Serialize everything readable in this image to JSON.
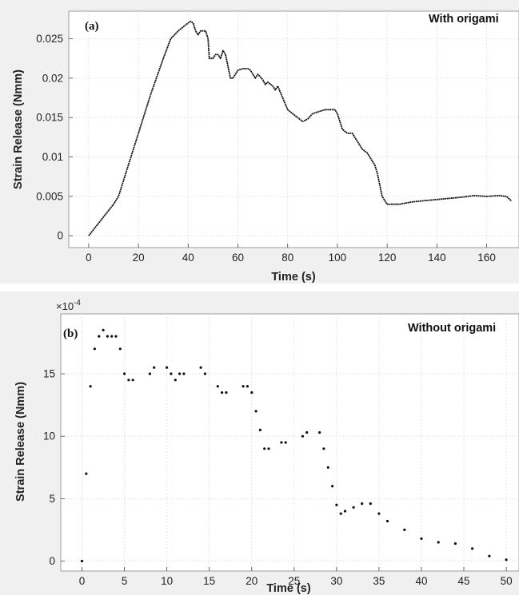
{
  "chart_data": [
    {
      "type": "line",
      "panel_label": "(a)",
      "legend": "With origami",
      "xlabel": "Time (s)",
      "ylabel": "Strain Release (Nmm)",
      "xlim": [
        -8,
        173
      ],
      "ylim": [
        -0.0015,
        0.0285
      ],
      "xticks": [
        0,
        20,
        40,
        60,
        80,
        100,
        120,
        140,
        160
      ],
      "yticks": [
        0,
        0.005,
        0.01,
        0.015,
        0.02,
        0.025
      ],
      "ytick_labels": [
        "0",
        "0.005",
        "0.01",
        "0.015",
        "0.02",
        "0.025"
      ],
      "grid": true,
      "series": [
        {
          "x": [
            0,
            5,
            10,
            12,
            15,
            20,
            25,
            30,
            33,
            36,
            38,
            40,
            41,
            42,
            43,
            44,
            45,
            47,
            48,
            48.5,
            50,
            51,
            52,
            53,
            54,
            55,
            56,
            57,
            58,
            60,
            62,
            64,
            65,
            66,
            67,
            68,
            70,
            71,
            72,
            74,
            75,
            76,
            78,
            80,
            82,
            84,
            86,
            88,
            90,
            95,
            99,
            100,
            102,
            104,
            106,
            108,
            110,
            112,
            114,
            115,
            116,
            117,
            118,
            119,
            120,
            122,
            125,
            130,
            140,
            150,
            155,
            160,
            165,
            168,
            170
          ],
          "y": [
            0,
            0.002,
            0.004,
            0.005,
            0.008,
            0.013,
            0.018,
            0.0225,
            0.025,
            0.026,
            0.0265,
            0.027,
            0.0272,
            0.027,
            0.026,
            0.0255,
            0.026,
            0.026,
            0.025,
            0.0225,
            0.0225,
            0.023,
            0.023,
            0.0225,
            0.0235,
            0.023,
            0.0215,
            0.02,
            0.02,
            0.021,
            0.0212,
            0.0212,
            0.021,
            0.0205,
            0.02,
            0.0205,
            0.0198,
            0.0192,
            0.0195,
            0.019,
            0.0185,
            0.019,
            0.0175,
            0.016,
            0.0155,
            0.015,
            0.0145,
            0.0148,
            0.0155,
            0.016,
            0.016,
            0.0155,
            0.0135,
            0.013,
            0.013,
            0.012,
            0.011,
            0.0105,
            0.0095,
            0.009,
            0.008,
            0.0065,
            0.005,
            0.0045,
            0.004,
            0.004,
            0.004,
            0.0043,
            0.0046,
            0.0049,
            0.0051,
            0.005,
            0.0051,
            0.005,
            0.0044
          ]
        }
      ]
    },
    {
      "type": "scatter",
      "panel_label": "(b)",
      "legend": "Without origami",
      "xlabel": "Time (s)",
      "ylabel": "Strain Release (Nmm)",
      "y_multiplier": "×10",
      "y_multiplier_exp": "-4",
      "xlim": [
        -2.5,
        51.5
      ],
      "ylim": [
        -0.8,
        19.8
      ],
      "xticks": [
        0,
        5,
        10,
        15,
        20,
        25,
        30,
        35,
        40,
        45,
        50
      ],
      "yticks": [
        0,
        5,
        10,
        15
      ],
      "ytick_labels": [
        "0",
        "5",
        "10",
        "15"
      ],
      "grid": true,
      "series": [
        {
          "x": [
            0,
            0.5,
            1,
            1.5,
            2,
            2.5,
            3,
            3.5,
            4,
            4.5,
            5,
            5.5,
            6,
            8,
            8.5,
            10,
            10.5,
            11,
            11.5,
            12,
            14,
            14.5,
            16,
            16.5,
            17,
            19,
            19.5,
            20,
            20.5,
            21,
            21.5,
            22,
            23.5,
            24,
            26,
            26.5,
            28,
            28.5,
            29,
            29.5,
            30,
            30.5,
            31,
            32,
            33,
            34,
            35,
            36,
            38,
            40,
            42,
            44,
            46,
            48,
            50
          ],
          "y": [
            0,
            7,
            14,
            17,
            18,
            18.5,
            18,
            18,
            18,
            17,
            15,
            14.5,
            14.5,
            15,
            15.5,
            15.5,
            15,
            14.5,
            15,
            15,
            15.5,
            15,
            14,
            13.5,
            13.5,
            14,
            14,
            13.5,
            12,
            10.5,
            9,
            9,
            9.5,
            9.5,
            10,
            10.3,
            10.3,
            9,
            7.5,
            6,
            4.5,
            3.8,
            4,
            4.3,
            4.6,
            4.6,
            3.8,
            3.2,
            2.5,
            1.8,
            1.5,
            1.4,
            1.0,
            0.4,
            0.1
          ]
        }
      ]
    }
  ]
}
